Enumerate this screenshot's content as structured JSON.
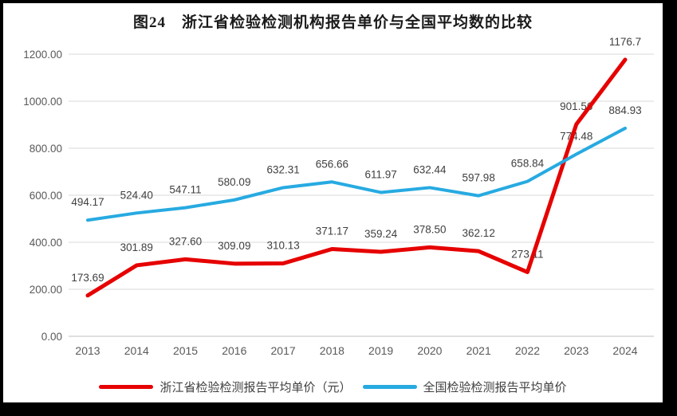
{
  "title": "图24　浙江省检验检测机构报告单价与全国平均数的比较",
  "chart_data": {
    "type": "line",
    "title": "图24　浙江省检验检测机构报告单价与全国平均数的比较",
    "categories": [
      "2013",
      "2014",
      "2015",
      "2016",
      "2017",
      "2018",
      "2019",
      "2020",
      "2021",
      "2022",
      "2023",
      "2024"
    ],
    "series": [
      {
        "name": "浙江省检验检测报告平均单价（元）",
        "color": "#e60000",
        "line_width": 5,
        "values": [
          "173.69",
          "301.89",
          "327.60",
          "309.09",
          "310.13",
          "371.17",
          "359.24",
          "378.50",
          "362.12",
          "273.11",
          "901.56",
          "1176.7"
        ]
      },
      {
        "name": "全国检验检测报告平均单价",
        "color": "#27aae1",
        "line_width": 4,
        "values": [
          "494.17",
          "524.40",
          "547.11",
          "580.09",
          "632.31",
          "656.66",
          "611.97",
          "632.44",
          "597.98",
          "658.84",
          "774.48",
          "884.93"
        ]
      }
    ],
    "ylim": [
      0,
      1200
    ],
    "yticks": [
      "0.00",
      "200.00",
      "400.00",
      "600.00",
      "800.00",
      "1000.00",
      "1200.00"
    ],
    "grid": "horizontal",
    "gridline_color": "#d9d9d9",
    "baseline_color": "#bfbfbf",
    "tick_color": "#595959",
    "data_label_color": "#3f3f3f",
    "legend_position": "bottom",
    "data_labels": true
  }
}
